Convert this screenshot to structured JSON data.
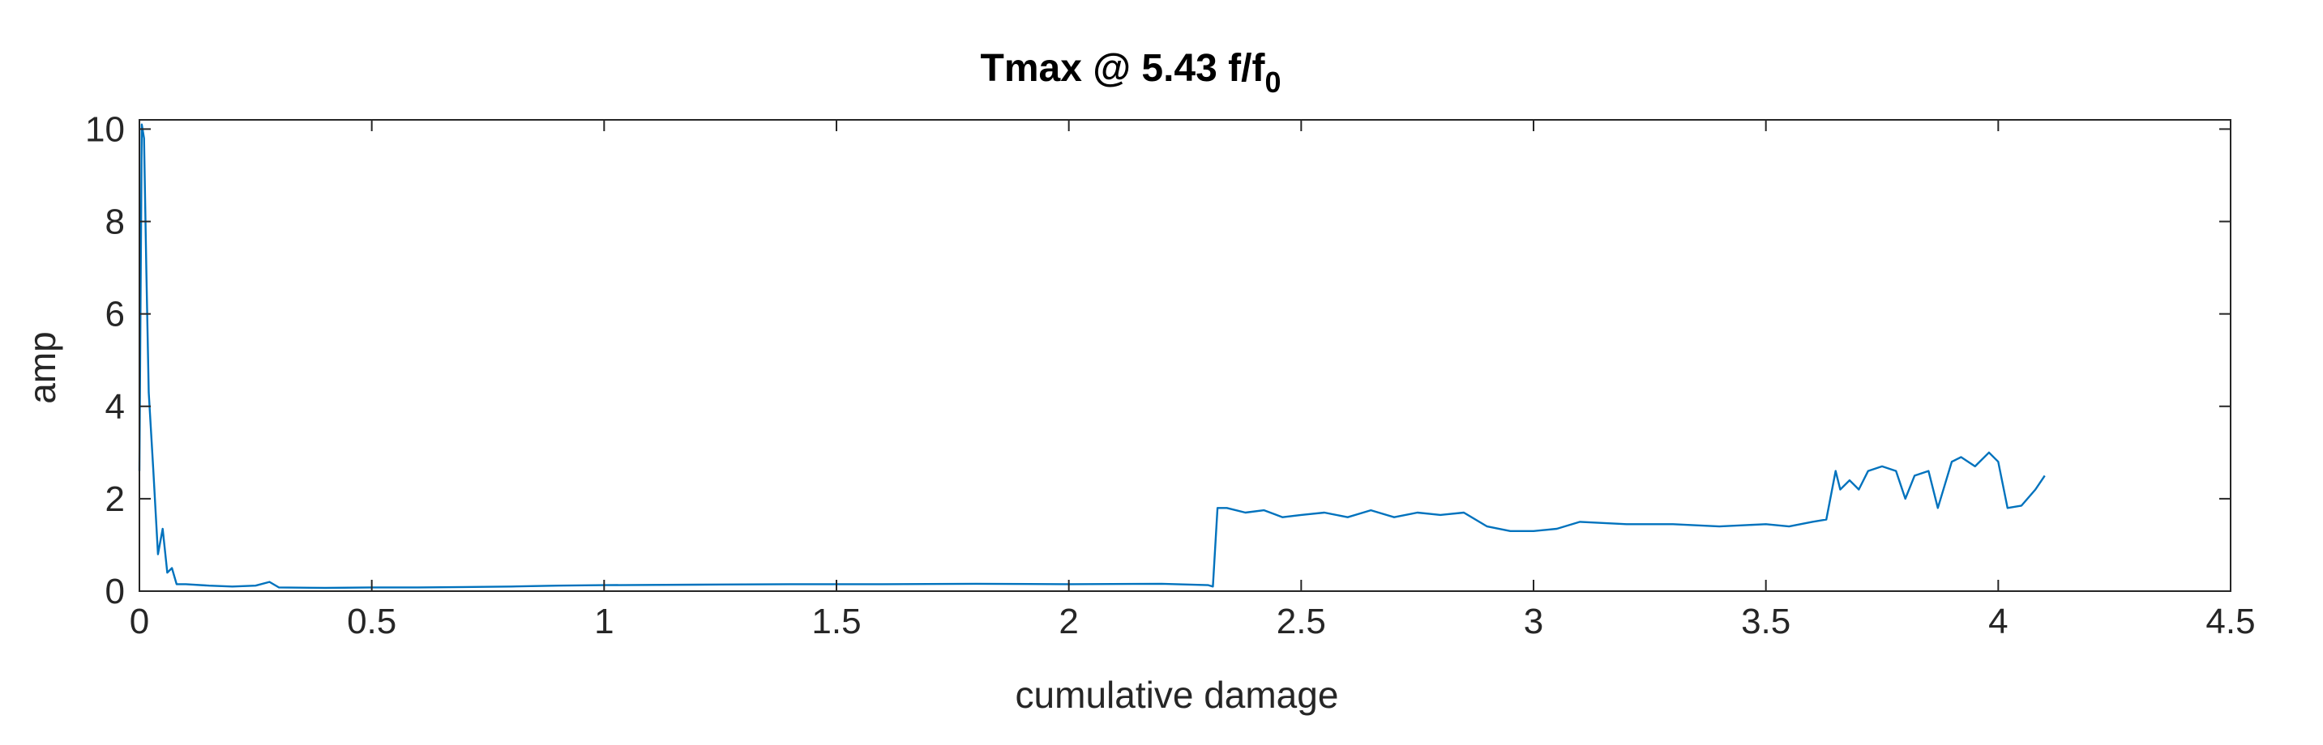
{
  "chart_data": {
    "type": "line",
    "title": "Tmax @ 5.43 f/f",
    "title_subscript": "0",
    "xlabel": "cumulative damage",
    "ylabel": "amp",
    "xlim": [
      0,
      4.5
    ],
    "ylim": [
      0,
      10.2
    ],
    "xticks": [
      0,
      0.5,
      1,
      1.5,
      2,
      2.5,
      3,
      3.5,
      4,
      4.5
    ],
    "xtick_labels": [
      "0",
      "0.5",
      "1",
      "1.5",
      "2",
      "2.5",
      "3",
      "3.5",
      "4",
      "4.5"
    ],
    "yticks": [
      0,
      2,
      4,
      6,
      8,
      10
    ],
    "ytick_labels": [
      "0",
      "2",
      "4",
      "6",
      "8",
      "10"
    ],
    "grid": false,
    "line_color": "#0072BD",
    "series": [
      {
        "x": [
          0,
          0.005,
          0.01,
          0.015,
          0.02,
          0.03,
          0.04,
          0.05,
          0.06,
          0.07,
          0.08,
          0.1,
          0.15,
          0.2,
          0.25,
          0.28,
          0.3,
          0.4,
          0.5,
          0.6,
          0.7,
          0.8,
          0.9,
          1.0,
          1.2,
          1.4,
          1.6,
          1.8,
          2.0,
          2.2,
          2.3,
          2.31,
          2.32,
          2.34,
          2.38,
          2.42,
          2.46,
          2.5,
          2.55,
          2.6,
          2.65,
          2.7,
          2.75,
          2.8,
          2.85,
          2.9,
          2.95,
          3.0,
          3.05,
          3.1,
          3.2,
          3.3,
          3.4,
          3.5,
          3.55,
          3.6,
          3.63,
          3.65,
          3.66,
          3.68,
          3.7,
          3.72,
          3.75,
          3.78,
          3.8,
          3.82,
          3.85,
          3.87,
          3.9,
          3.92,
          3.95,
          3.98,
          4.0,
          4.02,
          4.05,
          4.08,
          4.1
        ],
        "y": [
          2.6,
          10.1,
          9.8,
          6.9,
          4.3,
          2.6,
          0.8,
          1.35,
          0.4,
          0.5,
          0.15,
          0.15,
          0.12,
          0.1,
          0.12,
          0.2,
          0.08,
          0.07,
          0.08,
          0.08,
          0.09,
          0.1,
          0.12,
          0.13,
          0.14,
          0.15,
          0.15,
          0.16,
          0.15,
          0.16,
          0.13,
          0.1,
          1.8,
          1.8,
          1.7,
          1.75,
          1.6,
          1.65,
          1.7,
          1.6,
          1.75,
          1.6,
          1.7,
          1.65,
          1.7,
          1.4,
          1.3,
          1.3,
          1.35,
          1.5,
          1.45,
          1.45,
          1.4,
          1.45,
          1.4,
          1.5,
          1.55,
          2.6,
          2.2,
          2.4,
          2.2,
          2.6,
          2.7,
          2.6,
          2.0,
          2.5,
          2.6,
          1.8,
          2.8,
          2.9,
          2.7,
          3.0,
          2.8,
          1.8,
          1.85,
          2.2,
          2.5
        ]
      }
    ]
  }
}
